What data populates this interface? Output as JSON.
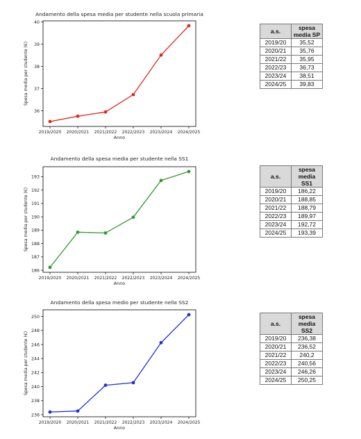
{
  "charts": [
    {
      "key": "sp",
      "chart_data": {
        "type": "line",
        "title": "Andamento della spesa media per studente nella scuola primaria",
        "xlabel": "Anno",
        "ylabel": "Spesa media per studente (€)",
        "categories": [
          "2019/2020",
          "2020/2021",
          "2021/2022",
          "2022/2023",
          "2023/2024",
          "2024/2025"
        ],
        "values": [
          35.52,
          35.76,
          35.95,
          36.73,
          38.51,
          39.83
        ],
        "ylim": [
          35.3,
          40.05
        ],
        "yticks": [
          36,
          37,
          38,
          39,
          40
        ],
        "color": "#e3261c",
        "grid": false
      },
      "table": {
        "head": [
          "a.s.",
          "spesa media SP"
        ],
        "rows": [
          [
            "2019/20",
            "35,52"
          ],
          [
            "2020/21",
            "35,76"
          ],
          [
            "2021/22",
            "35,95"
          ],
          [
            "2022/23",
            "36,73"
          ],
          [
            "2023/24",
            "38,51"
          ],
          [
            "2024/25",
            "39,83"
          ]
        ]
      }
    },
    {
      "key": "ss1",
      "chart_data": {
        "type": "line",
        "title": "Andamento della spesa media per studente nella SS1",
        "xlabel": "Anno",
        "ylabel": "Spesa media per studente (€)",
        "categories": [
          "2019/2020",
          "2020/2021",
          "2021/2022",
          "2022/2023",
          "2023/2024",
          "2024/2025"
        ],
        "values": [
          186.22,
          188.85,
          188.79,
          189.97,
          192.72,
          193.39
        ],
        "ylim": [
          185.85,
          193.75
        ],
        "yticks": [
          186,
          187,
          188,
          189,
          190,
          191,
          192,
          193
        ],
        "color": "#2e9a2e",
        "grid": false
      },
      "table": {
        "head": [
          "a.s.",
          "spesa media SS1"
        ],
        "rows": [
          [
            "2019/20",
            "186,22"
          ],
          [
            "2020/21",
            "188,85"
          ],
          [
            "2021/22",
            "188,79"
          ],
          [
            "2022/23",
            "189,97"
          ],
          [
            "2023/24",
            "192,72"
          ],
          [
            "2024/25",
            "193,39"
          ]
        ]
      }
    },
    {
      "key": "ss2",
      "chart_data": {
        "type": "line",
        "title": "Andamento della spesa medio per studente nella SS2",
        "xlabel": "Anno",
        "ylabel": "Spesa media per studente (€)",
        "categories": [
          "2019/2020",
          "2020/2021",
          "2021/2022",
          "2022/2023",
          "2023/2024",
          "2024/2025"
        ],
        "values": [
          236.38,
          236.52,
          240.2,
          240.56,
          246.26,
          250.25
        ],
        "ylim": [
          235.7,
          250.95
        ],
        "yticks": [
          236,
          238,
          240,
          242,
          244,
          246,
          248,
          250
        ],
        "color": "#1f2fd6",
        "grid": false
      },
      "table": {
        "head": [
          "a.s.",
          "spesa media SS2"
        ],
        "rows": [
          [
            "2019/20",
            "236,38"
          ],
          [
            "2020/21",
            "236,52"
          ],
          [
            "2021/22",
            "240,2"
          ],
          [
            "2022/23",
            "240,56"
          ],
          [
            "2023/24",
            "246,26"
          ],
          [
            "2024/25",
            "250,25"
          ]
        ]
      }
    }
  ]
}
